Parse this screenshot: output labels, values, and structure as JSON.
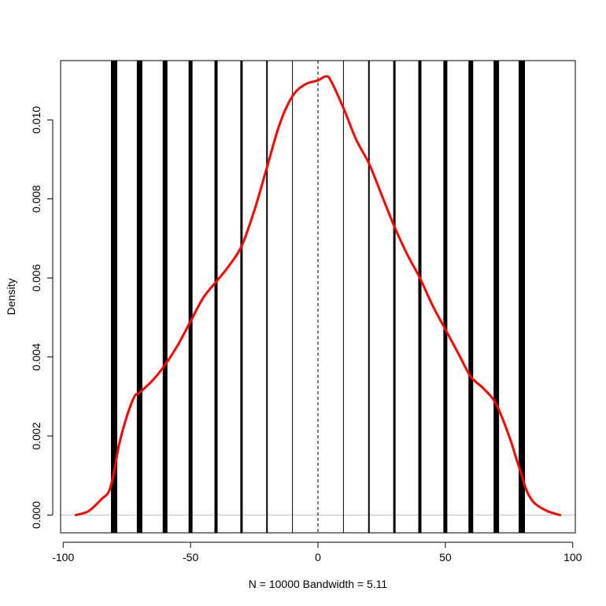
{
  "chart_data": {
    "type": "line",
    "title": "",
    "xlabel": "N = 10000   Bandwidth = 5.11",
    "ylabel": "Density",
    "xlim": [
      -101,
      101
    ],
    "ylim": [
      -0.00045,
      0.0115
    ],
    "xticks": [
      -100,
      -50,
      0,
      50,
      100
    ],
    "xtick_labels": [
      "-100",
      "-50",
      "0",
      "50",
      "100"
    ],
    "yticks": [
      0.0,
      0.002,
      0.004,
      0.006,
      0.008,
      0.01
    ],
    "ytick_labels": [
      "0.000",
      "0.002",
      "0.004",
      "0.006",
      "0.008",
      "0.010"
    ],
    "grid": false,
    "zero_line": {
      "y": 0,
      "color": "#bebebe"
    },
    "mean_line": {
      "x": 0,
      "style": "dashed",
      "color": "#000000"
    },
    "vertical_lines": [
      {
        "x": -80,
        "weight": 8
      },
      {
        "x": -70,
        "weight": 7
      },
      {
        "x": -60,
        "weight": 6
      },
      {
        "x": -50,
        "weight": 5
      },
      {
        "x": -40,
        "weight": 4
      },
      {
        "x": -30,
        "weight": 3
      },
      {
        "x": -20,
        "weight": 2
      },
      {
        "x": -10,
        "weight": 1
      },
      {
        "x": 10,
        "weight": 1
      },
      {
        "x": 20,
        "weight": 2
      },
      {
        "x": 30,
        "weight": 3
      },
      {
        "x": 40,
        "weight": 4
      },
      {
        "x": 50,
        "weight": 5
      },
      {
        "x": 60,
        "weight": 6
      },
      {
        "x": 70,
        "weight": 7
      },
      {
        "x": 80,
        "weight": 8
      }
    ],
    "series": [
      {
        "color": "#ff0000",
        "x": [
          -95,
          -90,
          -85,
          -82,
          -80,
          -78,
          -75,
          -72,
          -70,
          -65,
          -60,
          -55,
          -50,
          -45,
          -40,
          -35,
          -30,
          -25,
          -20,
          -15,
          -10,
          -5,
          0,
          3,
          5,
          10,
          15,
          20,
          25,
          30,
          35,
          40,
          45,
          50,
          55,
          60,
          65,
          70,
          75,
          78,
          80,
          82,
          85,
          90,
          95
        ],
        "y": [
          0.0,
          0.0001,
          0.0004,
          0.0006,
          0.0011,
          0.0018,
          0.0025,
          0.003,
          0.0031,
          0.0034,
          0.0038,
          0.0043,
          0.0049,
          0.0055,
          0.0059,
          0.0063,
          0.0068,
          0.0077,
          0.0088,
          0.0099,
          0.0106,
          0.0109,
          0.011,
          0.0111,
          0.011,
          0.0103,
          0.0095,
          0.0089,
          0.0081,
          0.0073,
          0.0066,
          0.006,
          0.0053,
          0.0047,
          0.0041,
          0.0035,
          0.0032,
          0.0028,
          0.002,
          0.0014,
          0.001,
          0.0006,
          0.0003,
          0.0001,
          0.0
        ]
      }
    ]
  }
}
